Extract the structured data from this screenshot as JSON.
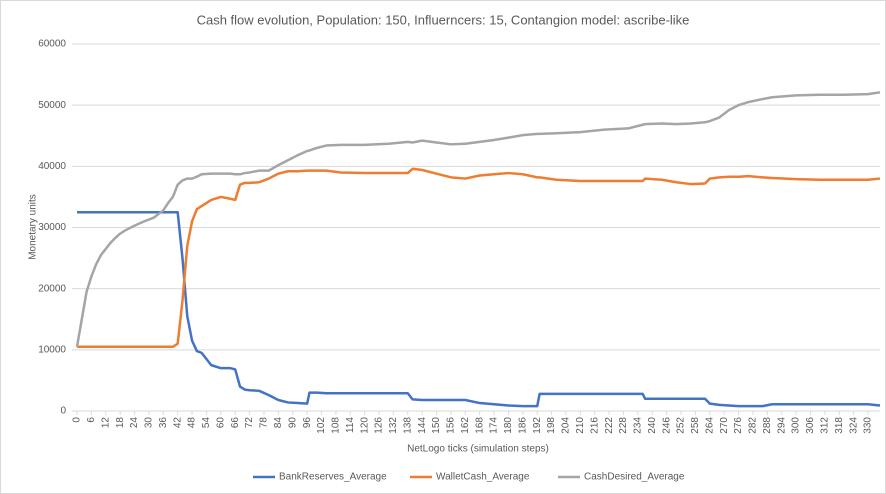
{
  "chart_data": {
    "type": "line",
    "title": "Cash flow evolution,  Population:  150,  Influerncers: 15,  Contangion model:  ascribe-like",
    "x_label": "NetLogo  ticks (simulation steps)",
    "y_label": "Monetary units",
    "x": [
      0,
      2,
      4,
      6,
      8,
      10,
      12,
      14,
      16,
      18,
      20,
      24,
      28,
      32,
      36,
      38,
      40,
      42,
      44,
      46,
      48,
      50,
      52,
      56,
      60,
      64,
      66,
      68,
      70,
      72,
      76,
      80,
      84,
      88,
      92,
      96,
      97,
      100,
      104,
      110,
      120,
      130,
      138,
      140,
      144,
      150,
      156,
      162,
      168,
      174,
      180,
      186,
      192,
      193,
      200,
      210,
      220,
      230,
      236,
      237,
      244,
      250,
      256,
      262,
      264,
      268,
      272,
      276,
      280,
      286,
      290,
      300,
      310,
      320,
      330,
      335
    ],
    "series": [
      {
        "name": "BankReserves_Average",
        "color": "#4472c4",
        "values": [
          32500,
          32500,
          32500,
          32500,
          32500,
          32500,
          32500,
          32500,
          32500,
          32500,
          32500,
          32500,
          32500,
          32500,
          32500,
          32500,
          32500,
          32500,
          25000,
          15500,
          11500,
          9800,
          9500,
          7500,
          7000,
          7000,
          6800,
          4000,
          3500,
          3400,
          3300,
          2600,
          1800,
          1400,
          1300,
          1200,
          3000,
          3000,
          2900,
          2900,
          2900,
          2900,
          2900,
          1900,
          1800,
          1800,
          1800,
          1800,
          1300,
          1100,
          900,
          800,
          800,
          2800,
          2800,
          2800,
          2800,
          2800,
          2800,
          2000,
          2000,
          2000,
          2000,
          2000,
          1200,
          1000,
          900,
          800,
          800,
          800,
          1100,
          1100,
          1100,
          1100,
          1100,
          900
        ]
      },
      {
        "name": "WalletCash_Average",
        "color": "#ed7d31",
        "values": [
          10500,
          10500,
          10500,
          10500,
          10500,
          10500,
          10500,
          10500,
          10500,
          10500,
          10500,
          10500,
          10500,
          10500,
          10500,
          10500,
          10500,
          11000,
          18000,
          27000,
          31000,
          33000,
          33500,
          34500,
          35000,
          34700,
          34500,
          37000,
          37300,
          37300,
          37400,
          38000,
          38800,
          39200,
          39200,
          39300,
          39300,
          39300,
          39300,
          39000,
          38900,
          38900,
          38900,
          39600,
          39400,
          38800,
          38200,
          38000,
          38500,
          38700,
          38900,
          38700,
          38200,
          38200,
          37800,
          37600,
          37600,
          37600,
          37600,
          38000,
          37800,
          37400,
          37100,
          37200,
          38000,
          38200,
          38300,
          38300,
          38400,
          38200,
          38100,
          37900,
          37800,
          37800,
          37800,
          38000
        ]
      },
      {
        "name": "CashDesired_Average",
        "color": "#a5a5a5",
        "values": [
          10500,
          15000,
          19500,
          22000,
          24000,
          25500,
          26500,
          27500,
          28300,
          29000,
          29500,
          30300,
          31000,
          31600,
          32800,
          34000,
          35000,
          37000,
          37700,
          38000,
          38000,
          38300,
          38700,
          38800,
          38800,
          38800,
          38700,
          38700,
          38900,
          39000,
          39300,
          39300,
          40200,
          41000,
          41800,
          42500,
          42600,
          43000,
          43400,
          43500,
          43500,
          43700,
          44000,
          43900,
          44200,
          43900,
          43600,
          43700,
          44000,
          44300,
          44700,
          45100,
          45300,
          45300,
          45400,
          45600,
          46000,
          46200,
          46800,
          46900,
          47000,
          46900,
          47000,
          47200,
          47400,
          48000,
          49200,
          50000,
          50500,
          51000,
          51300,
          51600,
          51700,
          51700,
          51800,
          52100
        ]
      }
    ],
    "xlim": [
      0,
      335
    ],
    "xticks": [
      0,
      6,
      12,
      18,
      24,
      30,
      36,
      42,
      48,
      54,
      60,
      66,
      72,
      78,
      84,
      90,
      96,
      102,
      108,
      114,
      120,
      126,
      132,
      138,
      144,
      150,
      156,
      162,
      168,
      174,
      180,
      186,
      192,
      198,
      204,
      210,
      216,
      222,
      228,
      234,
      240,
      246,
      252,
      258,
      264,
      270,
      276,
      282,
      288,
      294,
      300,
      306,
      312,
      318,
      324,
      330
    ],
    "ylim": [
      0,
      60000
    ],
    "yticks": [
      0,
      10000,
      20000,
      30000,
      40000,
      50000,
      60000
    ],
    "grid": true,
    "legend": "bottom"
  }
}
